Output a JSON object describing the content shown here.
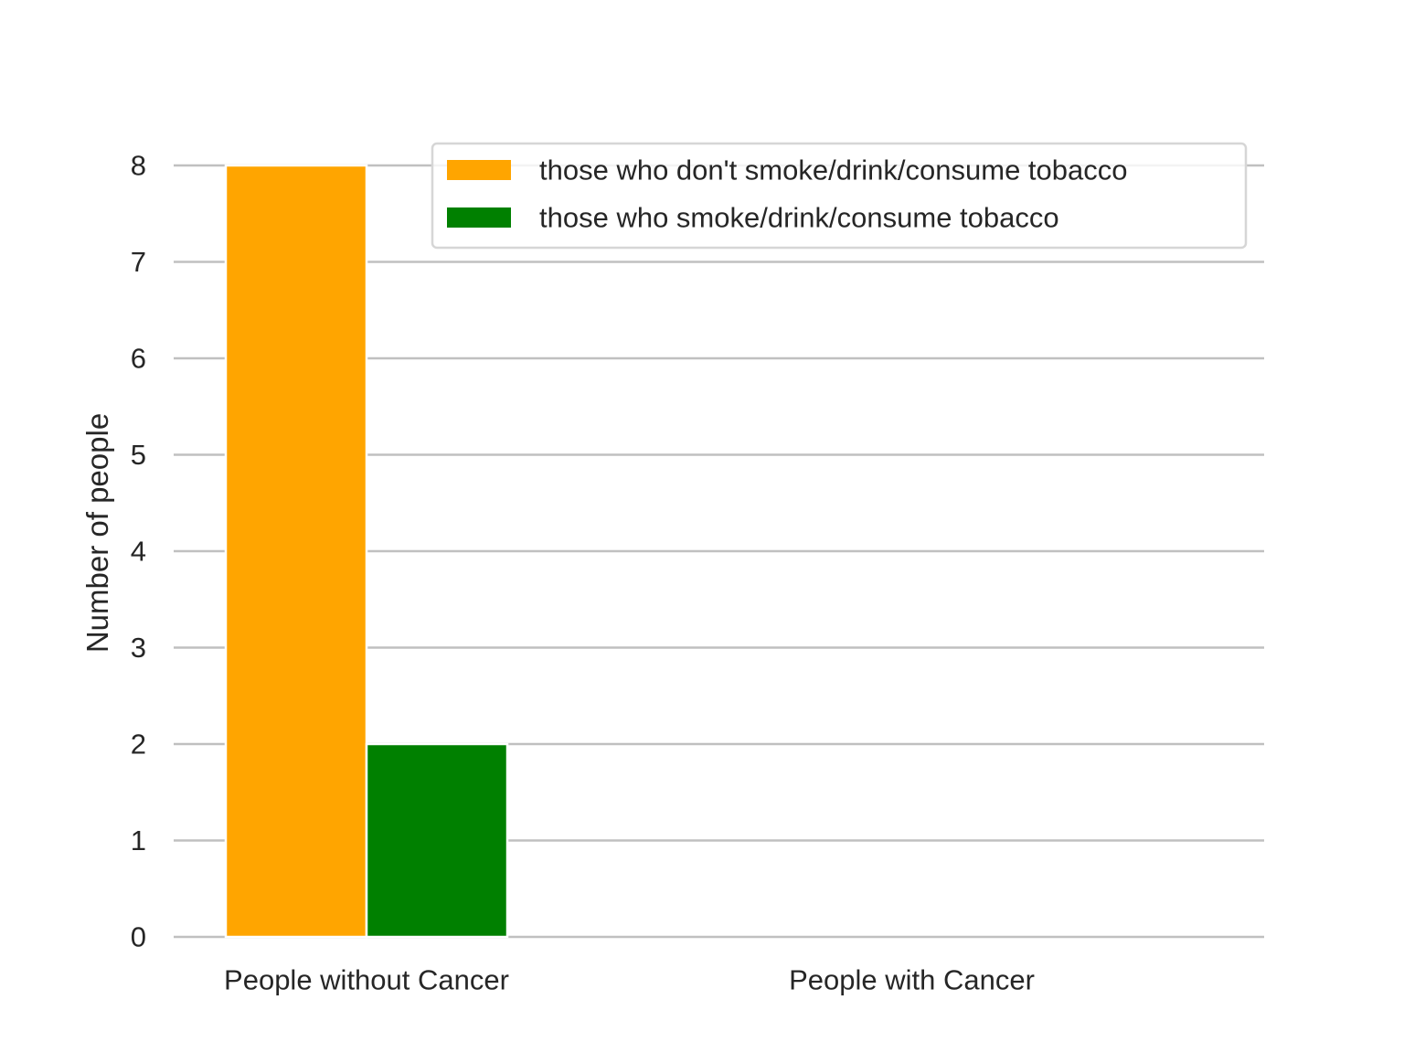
{
  "chart_data": {
    "type": "bar",
    "categories": [
      "People without Cancer",
      "People with Cancer"
    ],
    "series": [
      {
        "name": "those who don't smoke/drink/consume tobacco",
        "values": [
          8,
          0
        ],
        "color": "#ffa500"
      },
      {
        "name": "those who smoke/drink/consume tobacco",
        "values": [
          2,
          0
        ],
        "color": "#008000"
      }
    ],
    "title": "",
    "xlabel": "",
    "ylabel": "Number of people",
    "ylim": [
      0,
      8
    ],
    "yticks": [
      0,
      1,
      2,
      3,
      4,
      5,
      6,
      7,
      8
    ],
    "grid": "horizontal",
    "legend_position": "top-right"
  }
}
